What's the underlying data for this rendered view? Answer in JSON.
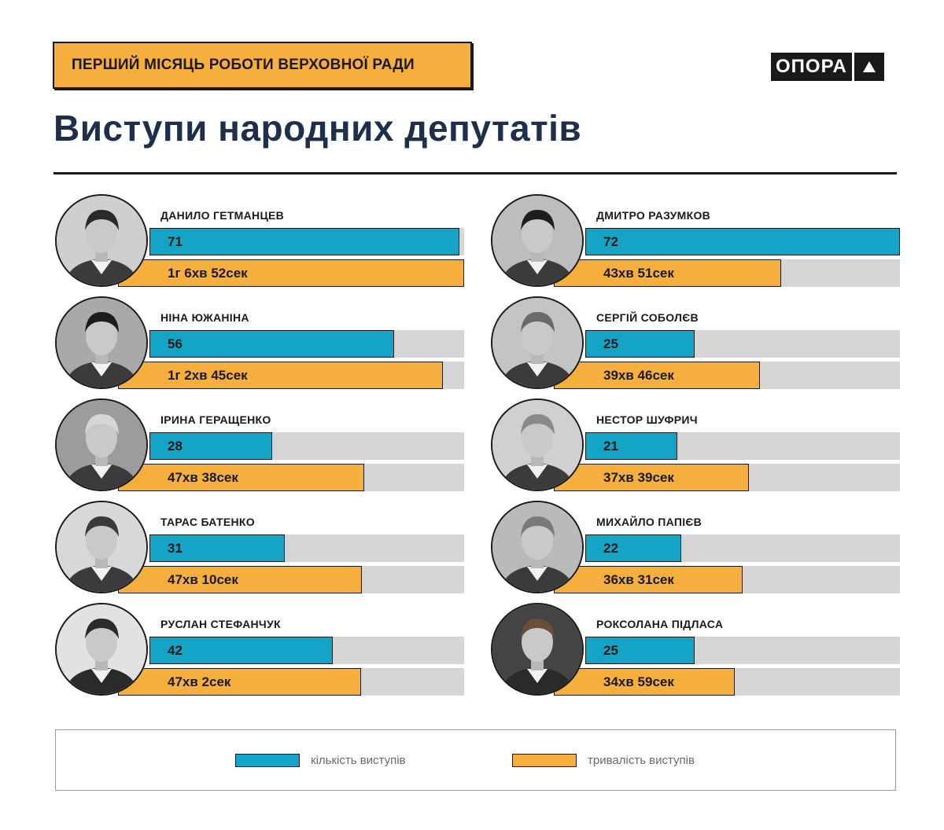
{
  "header": {
    "subtitle": "ПЕРШИЙ МІСЯЦЬ РОБОТИ ВЕРХОВНОЇ РАДИ",
    "logo_text": "ОПОРА"
  },
  "title": "Виступи народних депутатів",
  "colors": {
    "count": "#14a5c6",
    "duration": "#f6ae3c",
    "track": "#d5d5d5",
    "title": "#1d2f4a"
  },
  "legend": {
    "count_label": "кількість виступів",
    "duration_label": "тривалість виступів"
  },
  "chart_data": {
    "type": "bar",
    "series": [
      {
        "name": "кількість виступів",
        "key": "count"
      },
      {
        "name": "тривалість виступів",
        "key": "duration_sec"
      }
    ],
    "count_max": 72,
    "duration_max_sec": 4012,
    "items": [
      {
        "name": "ДАНИЛО ГЕТМАНЦЕВ",
        "count": 71,
        "duration_label": "1г 6хв 52сек",
        "duration_sec": 4012,
        "photo": "portrait-photo"
      },
      {
        "name": "НІНА ЮЖАНІНА",
        "count": 56,
        "duration_label": "1г 2хв 45сек",
        "duration_sec": 3765,
        "photo": "portrait-photo"
      },
      {
        "name": "ІРИНА ГЕРАЩЕНКО",
        "count": 28,
        "duration_label": "47хв 38сек",
        "duration_sec": 2858,
        "photo": "portrait-photo"
      },
      {
        "name": "ТАРАС БАТЕНКО",
        "count": 31,
        "duration_label": "47хв 10сек",
        "duration_sec": 2830,
        "photo": "portrait-photo"
      },
      {
        "name": "РУСЛАН СТЕФАНЧУК",
        "count": 42,
        "duration_label": "47хв 2сек",
        "duration_sec": 2822,
        "photo": "portrait-photo"
      },
      {
        "name": "ДМИТРО РАЗУМКОВ",
        "count": 72,
        "duration_label": "43хв 51сек",
        "duration_sec": 2631,
        "photo": "portrait-photo"
      },
      {
        "name": "СЕРГІЙ СОБОЛЄВ",
        "count": 25,
        "duration_label": "39хв 46сек",
        "duration_sec": 2386,
        "photo": "portrait-photo"
      },
      {
        "name": "НЕСТОР ШУФРИЧ",
        "count": 21,
        "duration_label": "37хв 39сек",
        "duration_sec": 2259,
        "photo": "portrait-photo"
      },
      {
        "name": "МИХАЙЛО ПАПІЄВ",
        "count": 22,
        "duration_label": "36хв 31сек",
        "duration_sec": 2191,
        "photo": "portrait-photo"
      },
      {
        "name": "РОКСОЛАНА ПІДЛАСА",
        "count": 25,
        "duration_label": "34хв 59сек",
        "duration_sec": 2099,
        "photo": "portrait-photo"
      }
    ]
  }
}
